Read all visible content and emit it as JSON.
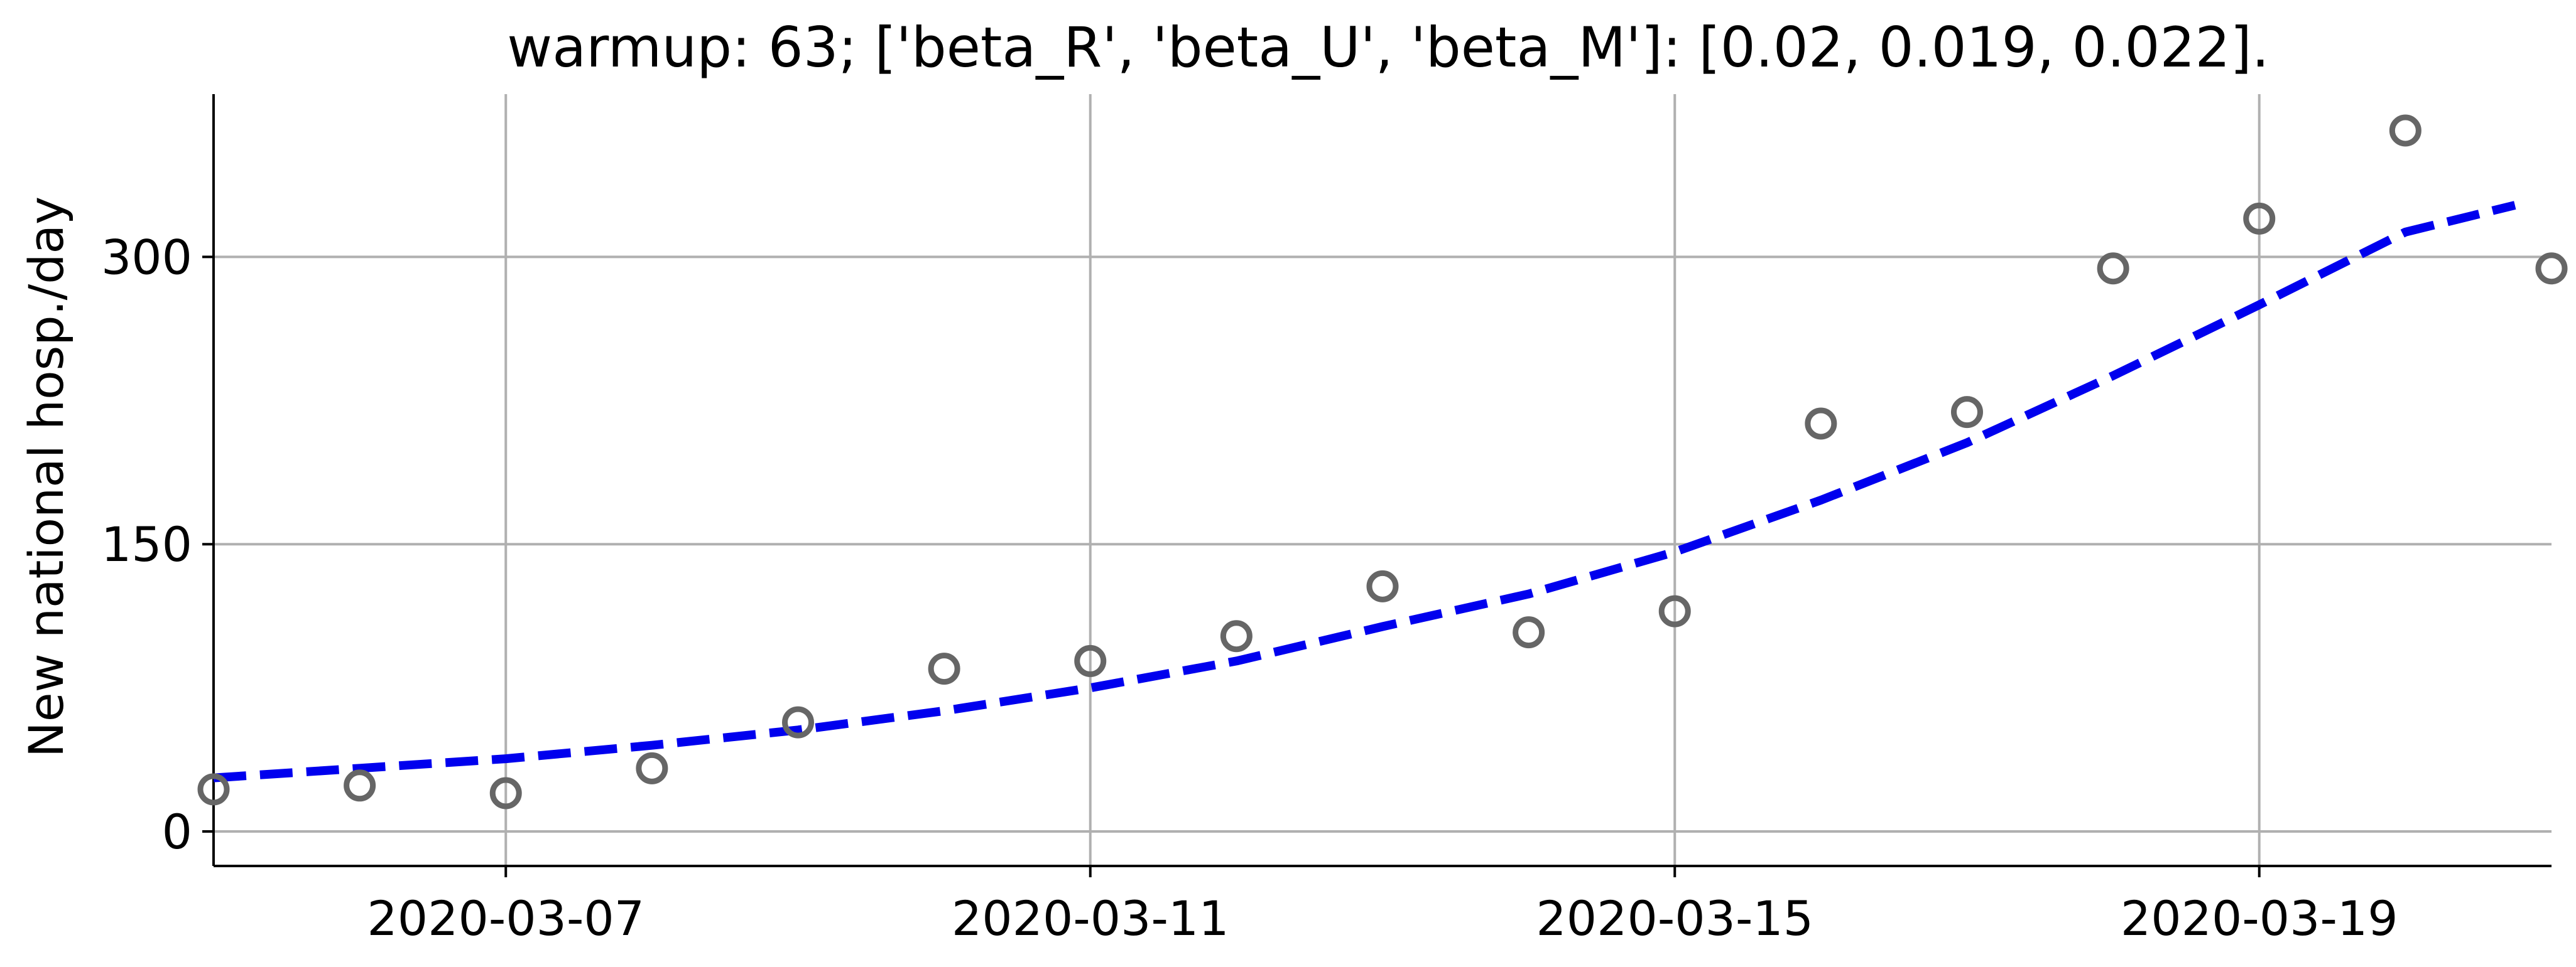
{
  "chart_data": {
    "type": "scatter",
    "title": "warmup: 63; ['beta_R', 'beta_U', 'beta_M']: [0.02, 0.019, 0.022].",
    "xlabel": "",
    "ylabel": "New national hosp./day",
    "x_ticks": [
      "2020-03-07",
      "2020-03-11",
      "2020-03-15",
      "2020-03-19"
    ],
    "y_ticks": [
      0,
      150,
      300
    ],
    "xlim": [
      "2020-03-05",
      "2020-03-21"
    ],
    "ylim": [
      -18,
      385
    ],
    "grid": true,
    "series": [
      {
        "style": "open-circle-markers",
        "color": "#666666",
        "x": [
          "2020-03-05",
          "2020-03-06",
          "2020-03-07",
          "2020-03-08",
          "2020-03-09",
          "2020-03-10",
          "2020-03-11",
          "2020-03-12",
          "2020-03-13",
          "2020-03-14",
          "2020-03-15",
          "2020-03-16",
          "2020-03-17",
          "2020-03-18",
          "2020-03-19",
          "2020-03-20",
          "2020-03-21"
        ],
        "y": [
          22,
          24,
          20,
          33,
          57,
          85,
          89,
          102,
          128,
          104,
          115,
          213,
          219,
          294,
          320,
          366,
          294
        ]
      },
      {
        "style": "dashed-line",
        "color": "#0000ee",
        "x": [
          "2020-03-05",
          "2020-03-06",
          "2020-03-07",
          "2020-03-08",
          "2020-03-09",
          "2020-03-10",
          "2020-03-11",
          "2020-03-12",
          "2020-03-13",
          "2020-03-14",
          "2020-03-15",
          "2020-03-16",
          "2020-03-17",
          "2020-03-18",
          "2020-03-19",
          "2020-03-20",
          "2020-03-20.75"
        ],
        "y": [
          28,
          33,
          38,
          45,
          53,
          63,
          75,
          89,
          107,
          124,
          146,
          173,
          203,
          238,
          275,
          313,
          327
        ]
      }
    ]
  }
}
